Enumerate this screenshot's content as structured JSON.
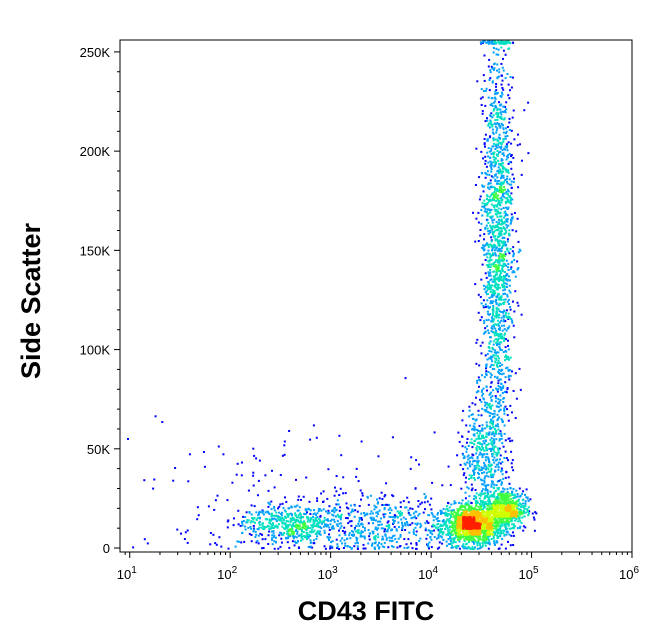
{
  "chart_data": {
    "type": "scatter",
    "subtype": "flow-cytometry-density-dot-plot",
    "xlabel": "CD43 FITC",
    "ylabel": "Side Scatter",
    "x_scale": "log",
    "xlim": [
      8,
      1000000
    ],
    "ylim": [
      -2000,
      256000
    ],
    "x_ticks": [
      {
        "value": 10,
        "base": "10",
        "exp": "1"
      },
      {
        "value": 100,
        "base": "10",
        "exp": "2"
      },
      {
        "value": 1000,
        "base": "10",
        "exp": "3"
      },
      {
        "value": 10000,
        "base": "10",
        "exp": "4"
      },
      {
        "value": 100000,
        "base": "10",
        "exp": "5"
      },
      {
        "value": 1000000,
        "base": "10",
        "exp": "6"
      }
    ],
    "y_ticks": [
      {
        "value": 0,
        "label": "0"
      },
      {
        "value": 50000,
        "label": "50K"
      },
      {
        "value": 100000,
        "label": "100K"
      },
      {
        "value": 150000,
        "label": "150K"
      },
      {
        "value": 200000,
        "label": "200K"
      },
      {
        "value": 250000,
        "label": "250K"
      }
    ],
    "density_colors": [
      "#0000ff",
      "#00a0ff",
      "#00e0c0",
      "#40ff40",
      "#d0ff00",
      "#ffc000",
      "#ff2000"
    ],
    "populations": [
      {
        "cx": 25000,
        "cy": 12000,
        "sx_decades": 0.15,
        "sy": 5000,
        "points": 1300
      },
      {
        "cx": 55000,
        "cy": 20000,
        "sx_decades": 0.1,
        "sy": 5000,
        "points": 600
      },
      {
        "cx": 45000,
        "cy": 155000,
        "sx_decades": 0.08,
        "sy": 55000,
        "points": 1600
      },
      {
        "cx": 32000,
        "cy": 45000,
        "sx_decades": 0.1,
        "sy": 18000,
        "points": 500
      },
      {
        "cx": 400,
        "cy": 13000,
        "sx_decades": 0.25,
        "sy": 4500,
        "points": 450
      },
      {
        "cx": 3000,
        "cy": 12000,
        "sx_decades": 0.45,
        "sy": 8000,
        "points": 500
      },
      {
        "cx": 300,
        "cy": 20000,
        "sx_decades": 0.9,
        "sy": 20000,
        "points": 200
      }
    ]
  }
}
